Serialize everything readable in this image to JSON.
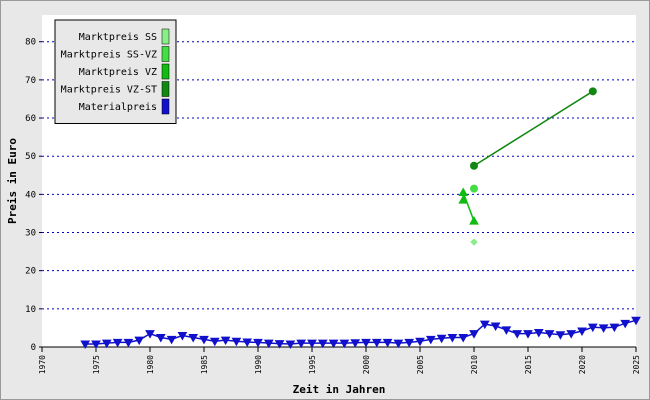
{
  "chart_data": {
    "type": "line",
    "x_label": "Zeit in Jahren",
    "y_label": "Preis in Euro",
    "xlim": [
      1970,
      2025
    ],
    "xticks": [
      1970,
      1975,
      1980,
      1985,
      1990,
      1995,
      2000,
      2005,
      2010,
      2015,
      2020,
      2025
    ],
    "ylim": [
      0,
      87
    ],
    "yticks": [
      0,
      10,
      20,
      30,
      40,
      50,
      60,
      70,
      80
    ],
    "grid": true,
    "legend": "upper left",
    "series": [
      {
        "name": "Marktpreis SS",
        "color": "#88ee88",
        "marker": "diamond",
        "x": [
          2010
        ],
        "values": [
          27.5
        ]
      },
      {
        "name": "Marktpreis SS-VZ",
        "color": "#44dd44",
        "marker": "circle",
        "x": [
          2010
        ],
        "values": [
          41.5
        ]
      },
      {
        "name": "Marktpreis VZ",
        "color": "#11bb11",
        "marker": "triangle-up",
        "x": [
          2009,
          2009,
          2010
        ],
        "values": [
          38.5,
          40.5,
          33
        ]
      },
      {
        "name": "Marktpreis VZ-ST",
        "color": "#118811",
        "marker": "circle",
        "x": [
          2010,
          2021
        ],
        "values": [
          47.5,
          67
        ]
      },
      {
        "name": "Materialpreis",
        "color": "#1111cc",
        "marker": "triangle-down",
        "x": [
          1974,
          1975,
          1976,
          1977,
          1978,
          1979,
          1980,
          1981,
          1982,
          1983,
          1984,
          1985,
          1986,
          1987,
          1988,
          1989,
          1990,
          1991,
          1992,
          1993,
          1994,
          1995,
          1996,
          1997,
          1998,
          1999,
          2000,
          2001,
          2002,
          2003,
          2004,
          2005,
          2006,
          2007,
          2008,
          2009,
          2010,
          2011,
          2012,
          2013,
          2014,
          2015,
          2016,
          2017,
          2018,
          2019,
          2020,
          2021,
          2022,
          2023,
          2024,
          2025
        ],
        "values": [
          0.8,
          0.8,
          1.0,
          1.2,
          1.2,
          1.8,
          3.5,
          2.5,
          2.0,
          3.0,
          2.5,
          2.0,
          1.5,
          1.8,
          1.5,
          1.3,
          1.2,
          1.0,
          0.9,
          0.8,
          1.0,
          1.0,
          1.0,
          1.0,
          1.0,
          1.1,
          1.2,
          1.2,
          1.2,
          1.0,
          1.2,
          1.5,
          2.0,
          2.3,
          2.5,
          2.5,
          3.5,
          6.0,
          5.5,
          4.5,
          3.5,
          3.5,
          3.8,
          3.5,
          3.2,
          3.5,
          4.2,
          5.2,
          5.0,
          5.2,
          6.2,
          7.0
        ]
      }
    ]
  }
}
